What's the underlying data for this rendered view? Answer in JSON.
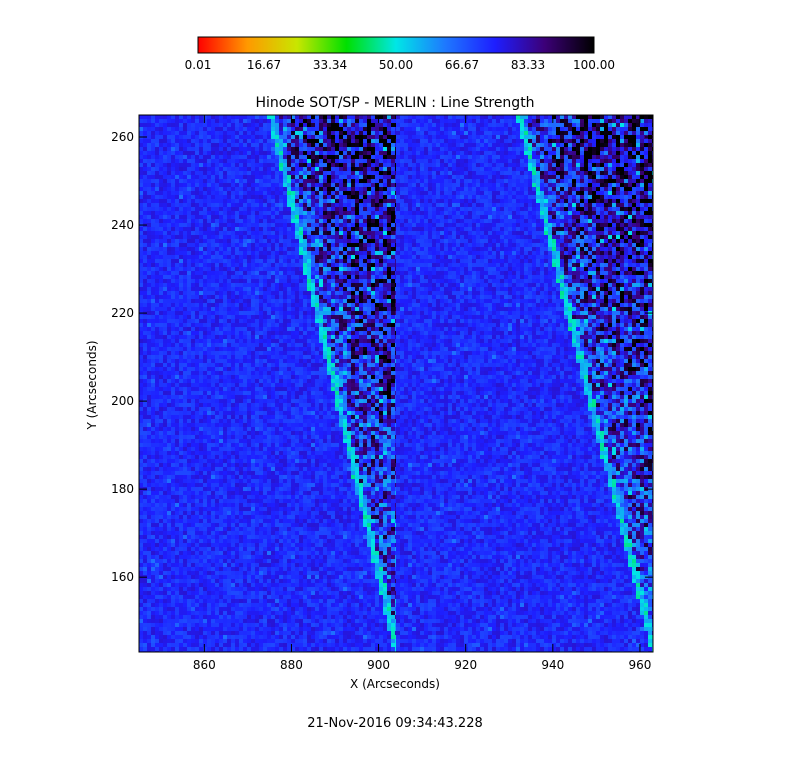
{
  "chart_data": {
    "type": "heatmap",
    "title": "Hinode SOT/SP - MERLIN : Line Strength",
    "xlabel": "X (Arcseconds)",
    "ylabel": "Y (Arcseconds)",
    "xlim": [
      845,
      963
    ],
    "ylim": [
      143,
      265
    ],
    "x_ticks": [
      860,
      880,
      900,
      920,
      940,
      960
    ],
    "y_ticks": [
      160,
      180,
      200,
      220,
      240,
      260
    ],
    "colorbar": {
      "ticks": [
        "0.01",
        "16.67",
        "33.34",
        "50.00",
        "66.67",
        "83.33",
        "100.00"
      ],
      "range": [
        0.01,
        100.0
      ],
      "colormap": [
        "#ff0000",
        "#ff9900",
        "#c8e600",
        "#00e000",
        "#00e6e6",
        "#1e78ff",
        "#1e1eff",
        "#3c0078",
        "#000000"
      ]
    },
    "panels": [
      {
        "name": "left",
        "x_range": [
          845,
          905
        ],
        "limb_top_x": 875,
        "limb_bottom_x": 904
      },
      {
        "name": "right",
        "x_range": [
          904,
          963
        ],
        "limb_top_x": 932,
        "limb_bottom_x": 963
      }
    ],
    "disk_value_typical": 74,
    "offlimb_value_typical": 90,
    "grid": false
  },
  "footer": {
    "timestamp": "21-Nov-2016 09:34:43.228"
  }
}
